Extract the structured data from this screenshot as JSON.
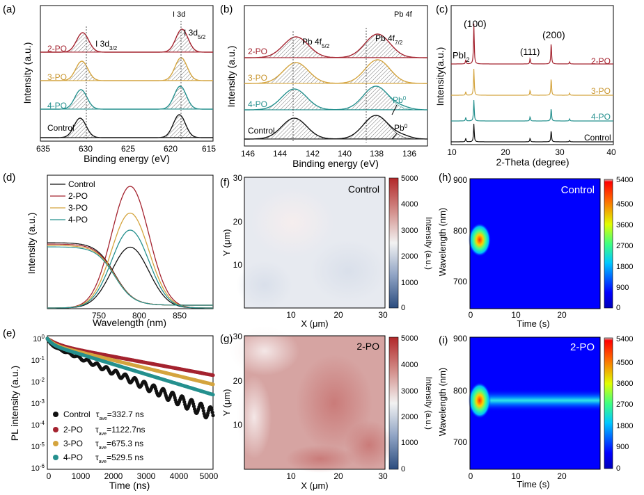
{
  "panels": {
    "a": {
      "letter": "(a)",
      "xlabel": "Binding energy (eV)",
      "ylabel": "Intensity (a.u.)",
      "xticks": [
        "635",
        "630",
        "625",
        "620",
        "615"
      ],
      "corner": "I 3d",
      "peak1_main": "I 3d",
      "peak1_sub": "3/2",
      "peak2_main": "I 3d",
      "peak2_sub": "5/2",
      "series": [
        "2-PO",
        "3-PO",
        "4-PO",
        "Control"
      ]
    },
    "b": {
      "letter": "(b)",
      "xlabel": "Binding energy (eV)",
      "ylabel": "Intensity (a.u.)",
      "xticks": [
        "146",
        "144",
        "142",
        "140",
        "138",
        "136"
      ],
      "corner": "Pb 4f",
      "peak1_main": "Pb 4f",
      "peak1_sub": "5/2",
      "peak2_main": "Pb 4f",
      "peak2_sub": "7/2",
      "pb0": "Pb",
      "pb0_sup": "0",
      "series": [
        "2-PO",
        "3-PO",
        "4-PO",
        "Control"
      ]
    },
    "c": {
      "letter": "(c)",
      "xlabel": "2-Theta (degree)",
      "ylabel": "Intensity(a.u.)",
      "xticks": [
        "10",
        "20",
        "30",
        "40"
      ],
      "pbi2_main": "PbI",
      "pbi2_sub": "2",
      "p100": "(100)",
      "p111": "(111)",
      "p200": "(200)",
      "series": [
        "2-PO",
        "3-PO",
        "4-PO",
        "Control"
      ]
    },
    "d": {
      "letter": "(d)",
      "xlabel": "Wavelength (nm)",
      "ylabel": "Intensity (a.u.)",
      "xticks": [
        "750",
        "800",
        "850"
      ],
      "legend": [
        "Control",
        "2-PO",
        "3-PO",
        "4-PO"
      ]
    },
    "e": {
      "letter": "(e)",
      "xlabel": "Time (ns)",
      "ylabel": "PL intensity (a.u.)",
      "xticks": [
        "0",
        "1000",
        "2000",
        "3000",
        "4000",
        "5000"
      ],
      "yticks": [
        {
          "m": "10",
          "e": "0"
        },
        {
          "m": "10",
          "e": "-1"
        },
        {
          "m": "10",
          "e": "-2"
        },
        {
          "m": "10",
          "e": "-3"
        },
        {
          "m": "10",
          "e": "-4"
        },
        {
          "m": "10",
          "e": "-5"
        },
        {
          "m": "10",
          "e": "-6"
        }
      ],
      "legend": [
        {
          "name": "Control",
          "tau": "τ",
          "sub": "ave",
          "val": "=332.7 ns"
        },
        {
          "name": "2-PO",
          "tau": "τ",
          "sub": "ave",
          "val": "=1122.7ns"
        },
        {
          "name": "3-PO",
          "tau": "τ",
          "sub": "ave",
          "val": "=675.3 ns"
        },
        {
          "name": "4-PO",
          "tau": "τ",
          "sub": "ave",
          "val": "=529.5 ns"
        }
      ]
    },
    "f": {
      "letter": "(f)",
      "label": "Control",
      "xlabel": "X (μm)",
      "ylabel": "Y (μm)",
      "xticks": [
        "10",
        "20",
        "30"
      ],
      "yticks": [
        "30",
        "20",
        "10"
      ],
      "cbar_label": "Intensity (a.u.)",
      "cbar_ticks": [
        "5000",
        "4000",
        "3000",
        "2000",
        "1000",
        "0"
      ]
    },
    "g": {
      "letter": "(g)",
      "label": "2-PO",
      "xlabel": "X (μm)",
      "ylabel": "Y (μm)",
      "xticks": [
        "10",
        "20",
        "30"
      ],
      "yticks": [
        "30",
        "20",
        "10"
      ],
      "cbar_label": "Intensity (a.u.)",
      "cbar_ticks": [
        "5000",
        "4000",
        "3000",
        "2000",
        "1000",
        "0"
      ]
    },
    "h": {
      "letter": "(h)",
      "label": "Control",
      "xlabel": "Time (s)",
      "ylabel": "Wavelength (nm)",
      "xticks": [
        "0",
        "10",
        "20"
      ],
      "yticks": [
        "900",
        "800",
        "700"
      ],
      "cbar_ticks": [
        "5400",
        "4500",
        "3600",
        "2700",
        "1800",
        "900",
        "0"
      ]
    },
    "i": {
      "letter": "(i)",
      "label": "2-PO",
      "xlabel": "Time (s)",
      "ylabel": "Wavelength (nm)",
      "xticks": [
        "0",
        "10",
        "20"
      ],
      "yticks": [
        "900",
        "800",
        "700"
      ],
      "cbar_ticks": [
        "5400",
        "4500",
        "3600",
        "2700",
        "1800",
        "900",
        "0"
      ]
    }
  },
  "colors": {
    "2-PO": "#a4232f",
    "3-PO": "#d4a43e",
    "4-PO": "#25908e",
    "Control": "#111111"
  },
  "chart_data": [
    {
      "id": "a",
      "type": "line",
      "title": "",
      "xlabel": "Binding energy (eV)",
      "ylabel": "Intensity (a.u.)",
      "xlim": [
        635,
        615
      ],
      "series": [
        {
          "name": "2-PO",
          "peaks": [
            630.1,
            618.6
          ]
        },
        {
          "name": "3-PO",
          "peaks": [
            630.2,
            618.7
          ]
        },
        {
          "name": "4-PO",
          "peaks": [
            630.3,
            618.8
          ]
        },
        {
          "name": "Control",
          "peaks": [
            630.4,
            618.9
          ]
        }
      ]
    },
    {
      "id": "b",
      "type": "line",
      "title": "",
      "xlabel": "Binding energy (eV)",
      "ylabel": "Intensity (a.u.)",
      "xlim": [
        146,
        135
      ],
      "series": [
        {
          "name": "2-PO",
          "peaks": [
            142.9,
            138.0
          ]
        },
        {
          "name": "3-PO",
          "peaks": [
            142.9,
            138.0
          ]
        },
        {
          "name": "4-PO",
          "peaks": [
            143.0,
            138.1
          ]
        },
        {
          "name": "Control",
          "peaks": [
            143.0,
            138.1
          ]
        }
      ]
    },
    {
      "id": "c",
      "type": "line",
      "title": "",
      "xlabel": "2-Theta (degree)",
      "ylabel": "Intensity(a.u.)",
      "xlim": [
        10,
        40
      ],
      "peaks_deg": [
        12.7,
        14.2,
        24.6,
        28.5,
        31.9
      ],
      "series": [
        {
          "name": "2-PO"
        },
        {
          "name": "3-PO"
        },
        {
          "name": "4-PO"
        },
        {
          "name": "Control"
        }
      ]
    },
    {
      "id": "d",
      "type": "line",
      "title": "",
      "xlabel": "Wavelength (nm)",
      "ylabel": "Intensity (a.u.)",
      "xlim": [
        720,
        880
      ],
      "series": [
        {
          "name": "Control",
          "pl_peak_rel": 0.5
        },
        {
          "name": "2-PO",
          "pl_peak_rel": 1.0
        },
        {
          "name": "3-PO",
          "pl_peak_rel": 0.78
        },
        {
          "name": "4-PO",
          "pl_peak_rel": 0.64
        }
      ]
    },
    {
      "id": "e",
      "type": "scatter",
      "title": "",
      "xlabel": "Time (ns)",
      "ylabel": "PL intensity (a.u.)",
      "xlim": [
        0,
        5000
      ],
      "ylim": [
        1e-06,
        1
      ],
      "yscale": "log",
      "series": [
        {
          "name": "Control",
          "tau_ave_ns": 332.7,
          "end_value": 0.0003
        },
        {
          "name": "2-PO",
          "tau_ave_ns": 1122.7,
          "end_value": 0.02
        },
        {
          "name": "3-PO",
          "tau_ave_ns": 675.3,
          "end_value": 0.0075
        },
        {
          "name": "4-PO",
          "tau_ave_ns": 529.5,
          "end_value": 0.0025
        }
      ]
    },
    {
      "id": "f",
      "type": "heatmap",
      "xlabel": "X (μm)",
      "ylabel": "Y (μm)",
      "xlim": [
        0,
        30
      ],
      "ylim": [
        0,
        30
      ],
      "zlim": [
        0,
        5000
      ],
      "approx_level": 2000
    },
    {
      "id": "g",
      "type": "heatmap",
      "xlabel": "X (μm)",
      "ylabel": "Y (μm)",
      "xlim": [
        0,
        30
      ],
      "ylim": [
        0,
        30
      ],
      "zlim": [
        0,
        5000
      ],
      "approx_level": 4000
    },
    {
      "id": "h",
      "type": "heatmap",
      "xlabel": "Time (s)",
      "ylabel": "Wavelength (nm)",
      "xlim": [
        0,
        28
      ],
      "ylim": [
        640,
        900
      ],
      "zlim": [
        0,
        5400
      ],
      "peak": {
        "time": 2,
        "wavelength": 780,
        "intensity": 3000
      }
    },
    {
      "id": "i",
      "type": "heatmap",
      "xlabel": "Time (s)",
      "ylabel": "Wavelength (nm)",
      "xlim": [
        0,
        28
      ],
      "ylim": [
        640,
        900
      ],
      "zlim": [
        0,
        5400
      ],
      "peak": {
        "time": 2,
        "wavelength": 780,
        "intensity": 4000
      },
      "persistent_band": {
        "wavelength": 780,
        "intensity": 1400
      }
    }
  ]
}
